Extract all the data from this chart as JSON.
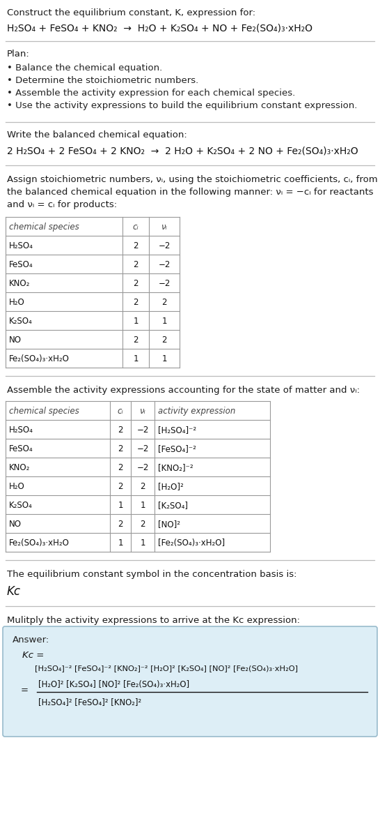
{
  "bg_color": "#ffffff",
  "table_border_color": "#999999",
  "answer_box_color": "#ddeef6",
  "answer_box_border": "#99bbcc",
  "title_line1": "Construct the equilibrium constant, K, expression for:",
  "title_line2": "H₂SO₄ + FeSO₄ + KNO₂  →  H₂O + K₂SO₄ + NO + Fe₂(SO₄)₃·xH₂O",
  "plan_header": "Plan:",
  "plan_items": [
    "• Balance the chemical equation.",
    "• Determine the stoichiometric numbers.",
    "• Assemble the activity expression for each chemical species.",
    "• Use the activity expressions to build the equilibrium constant expression."
  ],
  "balanced_header": "Write the balanced chemical equation:",
  "balanced_eq": "2 H₂SO₄ + 2 FeSO₄ + 2 KNO₂  →  2 H₂O + K₂SO₄ + 2 NO + Fe₂(SO₄)₃·xH₂O",
  "stoich_header_parts": [
    "Assign stoichiometric numbers, νᵢ, using the stoichiometric coefficients, cᵢ, from",
    "the balanced chemical equation in the following manner: νᵢ = −cᵢ for reactants",
    "and νᵢ = cᵢ for products:"
  ],
  "table1_headers": [
    "chemical species",
    "cᵢ",
    "νᵢ"
  ],
  "table1_rows": [
    [
      "H₂SO₄",
      "2",
      "−2"
    ],
    [
      "FeSO₄",
      "2",
      "−2"
    ],
    [
      "KNO₂",
      "2",
      "−2"
    ],
    [
      "H₂O",
      "2",
      "2"
    ],
    [
      "K₂SO₄",
      "1",
      "1"
    ],
    [
      "NO",
      "2",
      "2"
    ],
    [
      "Fe₂(SO₄)₃·xH₂O",
      "1",
      "1"
    ]
  ],
  "activity_header": "Assemble the activity expressions accounting for the state of matter and νᵢ:",
  "table2_headers": [
    "chemical species",
    "cᵢ",
    "νᵢ",
    "activity expression"
  ],
  "table2_rows": [
    [
      "H₂SO₄",
      "2",
      "−2",
      "[H₂SO₄]⁻²"
    ],
    [
      "FeSO₄",
      "2",
      "−2",
      "[FeSO₄]⁻²"
    ],
    [
      "KNO₂",
      "2",
      "−2",
      "[KNO₂]⁻²"
    ],
    [
      "H₂O",
      "2",
      "2",
      "[H₂O]²"
    ],
    [
      "K₂SO₄",
      "1",
      "1",
      "[K₂SO₄]"
    ],
    [
      "NO",
      "2",
      "2",
      "[NO]²"
    ],
    [
      "Fe₂(SO₄)₃·xH₂O",
      "1",
      "1",
      "[Fe₂(SO₄)₃·xH₂O]"
    ]
  ],
  "kc_header": "The equilibrium constant symbol in the concentration basis is:",
  "kc_symbol": "Kᴄ",
  "multiply_header": "Mulitply the activity expressions to arrive at the Kᴄ expression:",
  "answer_label": "Answer:",
  "kc_line1": "Kᴄ =",
  "kc_line2": "[H₂SO₄]⁻² [FeSO₄]⁻² [KNO₂]⁻² [H₂O]² [K₂SO₄] [NO]² [Fe₂(SO₄)₃·xH₂O]",
  "kc_num": "[H₂O]² [K₂SO₄] [NO]² [Fe₂(SO₄)₃·xH₂O]",
  "kc_den": "[H₂SO₄]² [FeSO₄]² [KNO₂]²",
  "fs_small": 8.5,
  "fs_body": 9.5,
  "fs_eq": 10.0,
  "fs_kc": 12.0
}
